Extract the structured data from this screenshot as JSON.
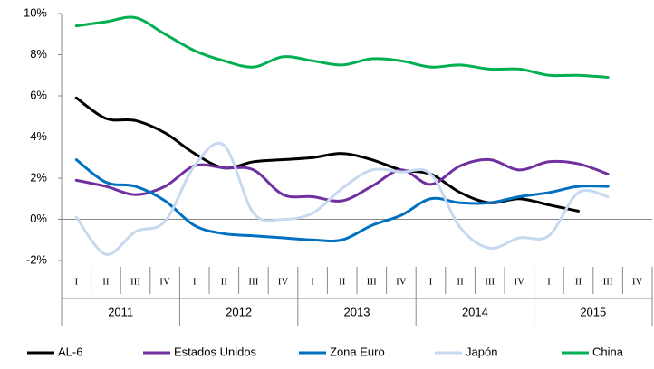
{
  "chart_data": {
    "type": "line",
    "categories": [
      "I",
      "II",
      "III",
      "IV",
      "I",
      "II",
      "III",
      "IV",
      "I",
      "II",
      "III",
      "IV",
      "I",
      "II",
      "III",
      "IV",
      "I",
      "II",
      "III",
      "IV"
    ],
    "years": [
      "2011",
      "2012",
      "2013",
      "2014",
      "2015"
    ],
    "ylim": [
      -2,
      10
    ],
    "yticks": [
      {
        "value": -2,
        "label": "-2%"
      },
      {
        "value": 0,
        "label": "0%"
      },
      {
        "value": 2,
        "label": "2%"
      },
      {
        "value": 4,
        "label": "4%"
      },
      {
        "value": 6,
        "label": "6%"
      },
      {
        "value": 8,
        "label": "8%"
      },
      {
        "value": 10,
        "label": "10%"
      }
    ],
    "grid": false,
    "legend": "bottom",
    "series": [
      {
        "name": "AL-6",
        "color": "#000000",
        "values": [
          5.9,
          4.9,
          4.8,
          4.2,
          3.2,
          2.5,
          2.8,
          2.9,
          3.0,
          3.2,
          2.9,
          2.4,
          2.2,
          1.3,
          0.8,
          1.0,
          0.7,
          0.4,
          null,
          null
        ]
      },
      {
        "name": "Estados Unidos",
        "color": "#7030a0",
        "values": [
          1.9,
          1.6,
          1.2,
          1.6,
          2.6,
          2.5,
          2.4,
          1.2,
          1.1,
          0.9,
          1.6,
          2.4,
          1.7,
          2.6,
          2.9,
          2.4,
          2.8,
          2.7,
          2.2,
          null
        ]
      },
      {
        "name": "Zona Euro",
        "color": "#0070c0",
        "values": [
          2.9,
          1.8,
          1.6,
          0.9,
          -0.3,
          -0.7,
          -0.8,
          -0.9,
          -1.0,
          -1.0,
          -0.3,
          0.2,
          1.0,
          0.8,
          0.8,
          1.1,
          1.3,
          1.6,
          1.6,
          null
        ]
      },
      {
        "name": "Japón",
        "color": "#c6d9f1",
        "values": [
          0.1,
          -1.7,
          -0.6,
          -0.1,
          2.6,
          3.6,
          0.3,
          0.0,
          0.3,
          1.5,
          2.4,
          2.3,
          2.2,
          -0.4,
          -1.4,
          -0.9,
          -0.8,
          1.3,
          1.1,
          null
        ]
      },
      {
        "name": "China",
        "color": "#00b050",
        "values": [
          9.4,
          9.6,
          9.8,
          9.0,
          8.2,
          7.7,
          7.4,
          7.9,
          7.7,
          7.5,
          7.8,
          7.7,
          7.4,
          7.5,
          7.3,
          7.3,
          7.0,
          7.0,
          6.9,
          null
        ]
      }
    ]
  }
}
